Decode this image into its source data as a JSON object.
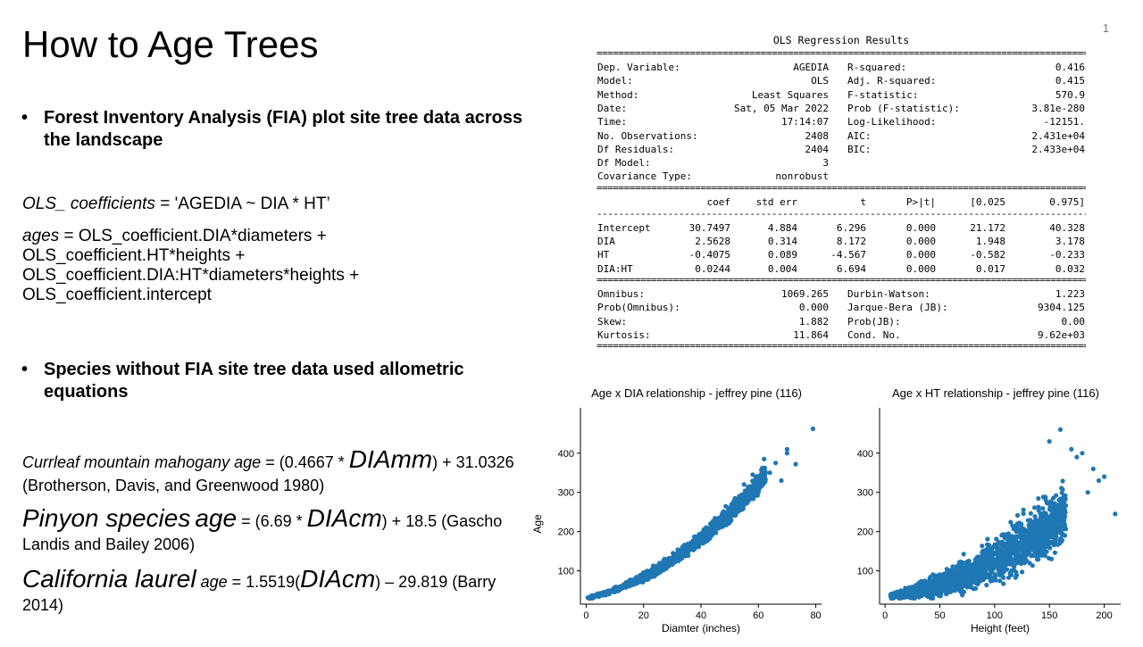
{
  "title": "How to Age Trees",
  "slide_number": "1",
  "bullets": [
    {
      "text": "Forest Inventory Analysis (FIA) plot site tree data across the landscape"
    },
    {
      "text": "Species without FIA site tree data used allometric equations"
    }
  ],
  "ols_line": {
    "var": "OLS_ coefficients",
    "rest": " = 'AGEDIA ~ DIA * HT’"
  },
  "ages_line": {
    "var": "ages",
    "rest": " = OLS_coefficient.DIA*diameters + OLS_coefficient.HT*heights + OLS_coefficient.DIA:HT*diameters*heights + OLS_coefficient.intercept"
  },
  "equations": [
    {
      "name": "Currleaf mountain mahogany",
      "age": "age",
      "eq1": " = (0.4667 * ",
      "dia": "DIAmm",
      "eq2": ") + 31.0326 (Brotherson, Davis, and Greenwood 1980)"
    },
    {
      "name": "Pinyon species",
      "age": "age",
      "eq1": " = (6.69 * ",
      "dia": "DIAcm",
      "eq2": ") + 18.5 (Gascho Landis and Bailey 2006)"
    },
    {
      "name": "California laurel",
      "age": "age",
      "eq1": " = 1.5519(",
      "dia": "DIAcm",
      "eq2": ") – 29.819 (Barry 2014)"
    }
  ],
  "ols_table": {
    "title": "OLS Regression Results",
    "top_left": [
      [
        "Dep. Variable:",
        "AGEDIA"
      ],
      [
        "Model:",
        "OLS"
      ],
      [
        "Method:",
        "Least Squares"
      ],
      [
        "Date:",
        "Sat, 05 Mar 2022"
      ],
      [
        "Time:",
        "17:14:07"
      ],
      [
        "No. Observations:",
        "2408"
      ],
      [
        "Df Residuals:",
        "2404"
      ],
      [
        "Df Model:",
        "3"
      ],
      [
        "Covariance Type:",
        "nonrobust"
      ]
    ],
    "top_right": [
      [
        "R-squared:",
        "0.416"
      ],
      [
        "Adj. R-squared:",
        "0.415"
      ],
      [
        "F-statistic:",
        "570.9"
      ],
      [
        "Prob (F-statistic):",
        "3.81e-280"
      ],
      [
        "Log-Likelihood:",
        "-12151."
      ],
      [
        "AIC:",
        "2.431e+04"
      ],
      [
        "BIC:",
        "2.433e+04"
      ]
    ],
    "coef_header": [
      "coef",
      "std err",
      "t",
      "P>|t|",
      "[0.025",
      "0.975]"
    ],
    "coef_rows": [
      [
        "Intercept",
        "30.7497",
        "4.884",
        "6.296",
        "0.000",
        "21.172",
        "40.328"
      ],
      [
        "DIA",
        "2.5628",
        "0.314",
        "8.172",
        "0.000",
        "1.948",
        "3.178"
      ],
      [
        "HT",
        "-0.4075",
        "0.089",
        "-4.567",
        "0.000",
        "-0.582",
        "-0.233"
      ],
      [
        "DIA:HT",
        "0.0244",
        "0.004",
        "6.694",
        "0.000",
        "0.017",
        "0.032"
      ]
    ],
    "bottom_left": [
      [
        "Omnibus:",
        "1069.265"
      ],
      [
        "Prob(Omnibus):",
        "0.000"
      ],
      [
        "Skew:",
        "1.882"
      ],
      [
        "Kurtosis:",
        "11.864"
      ]
    ],
    "bottom_right": [
      [
        "Durbin-Watson:",
        "1.223"
      ],
      [
        "Jarque-Bera (JB):",
        "9304.125"
      ],
      [
        "Prob(JB):",
        "0.00"
      ],
      [
        "Cond. No.",
        "9.62e+03"
      ]
    ]
  },
  "chart_data": [
    {
      "type": "scatter",
      "title": "Age x DIA relationship -  jeffrey pine (116)",
      "xlabel": "Diamter (inches)",
      "ylabel": "Age",
      "xlim": [
        -2,
        82
      ],
      "ylim": [
        15,
        470
      ],
      "xticks": [
        0,
        20,
        40,
        60,
        80
      ],
      "yticks": [
        100,
        200,
        300,
        400
      ],
      "color": "#1f77b4",
      "points_summary": {
        "x_min": 0.5,
        "x_max": 79,
        "y_min": 30,
        "y_max": 462
      }
    },
    {
      "type": "scatter",
      "title": "Age x HT relationship - jeffrey pine (116)",
      "xlabel": "Height (feet)",
      "ylabel": "",
      "xlim": [
        -5,
        215
      ],
      "ylim": [
        15,
        470
      ],
      "xticks": [
        0,
        50,
        100,
        150,
        200
      ],
      "yticks": [
        100,
        200,
        300,
        400
      ],
      "color": "#1f77b4",
      "points_summary": {
        "x_min": 5,
        "x_max": 210,
        "y_min": 30,
        "y_max": 460
      }
    }
  ]
}
